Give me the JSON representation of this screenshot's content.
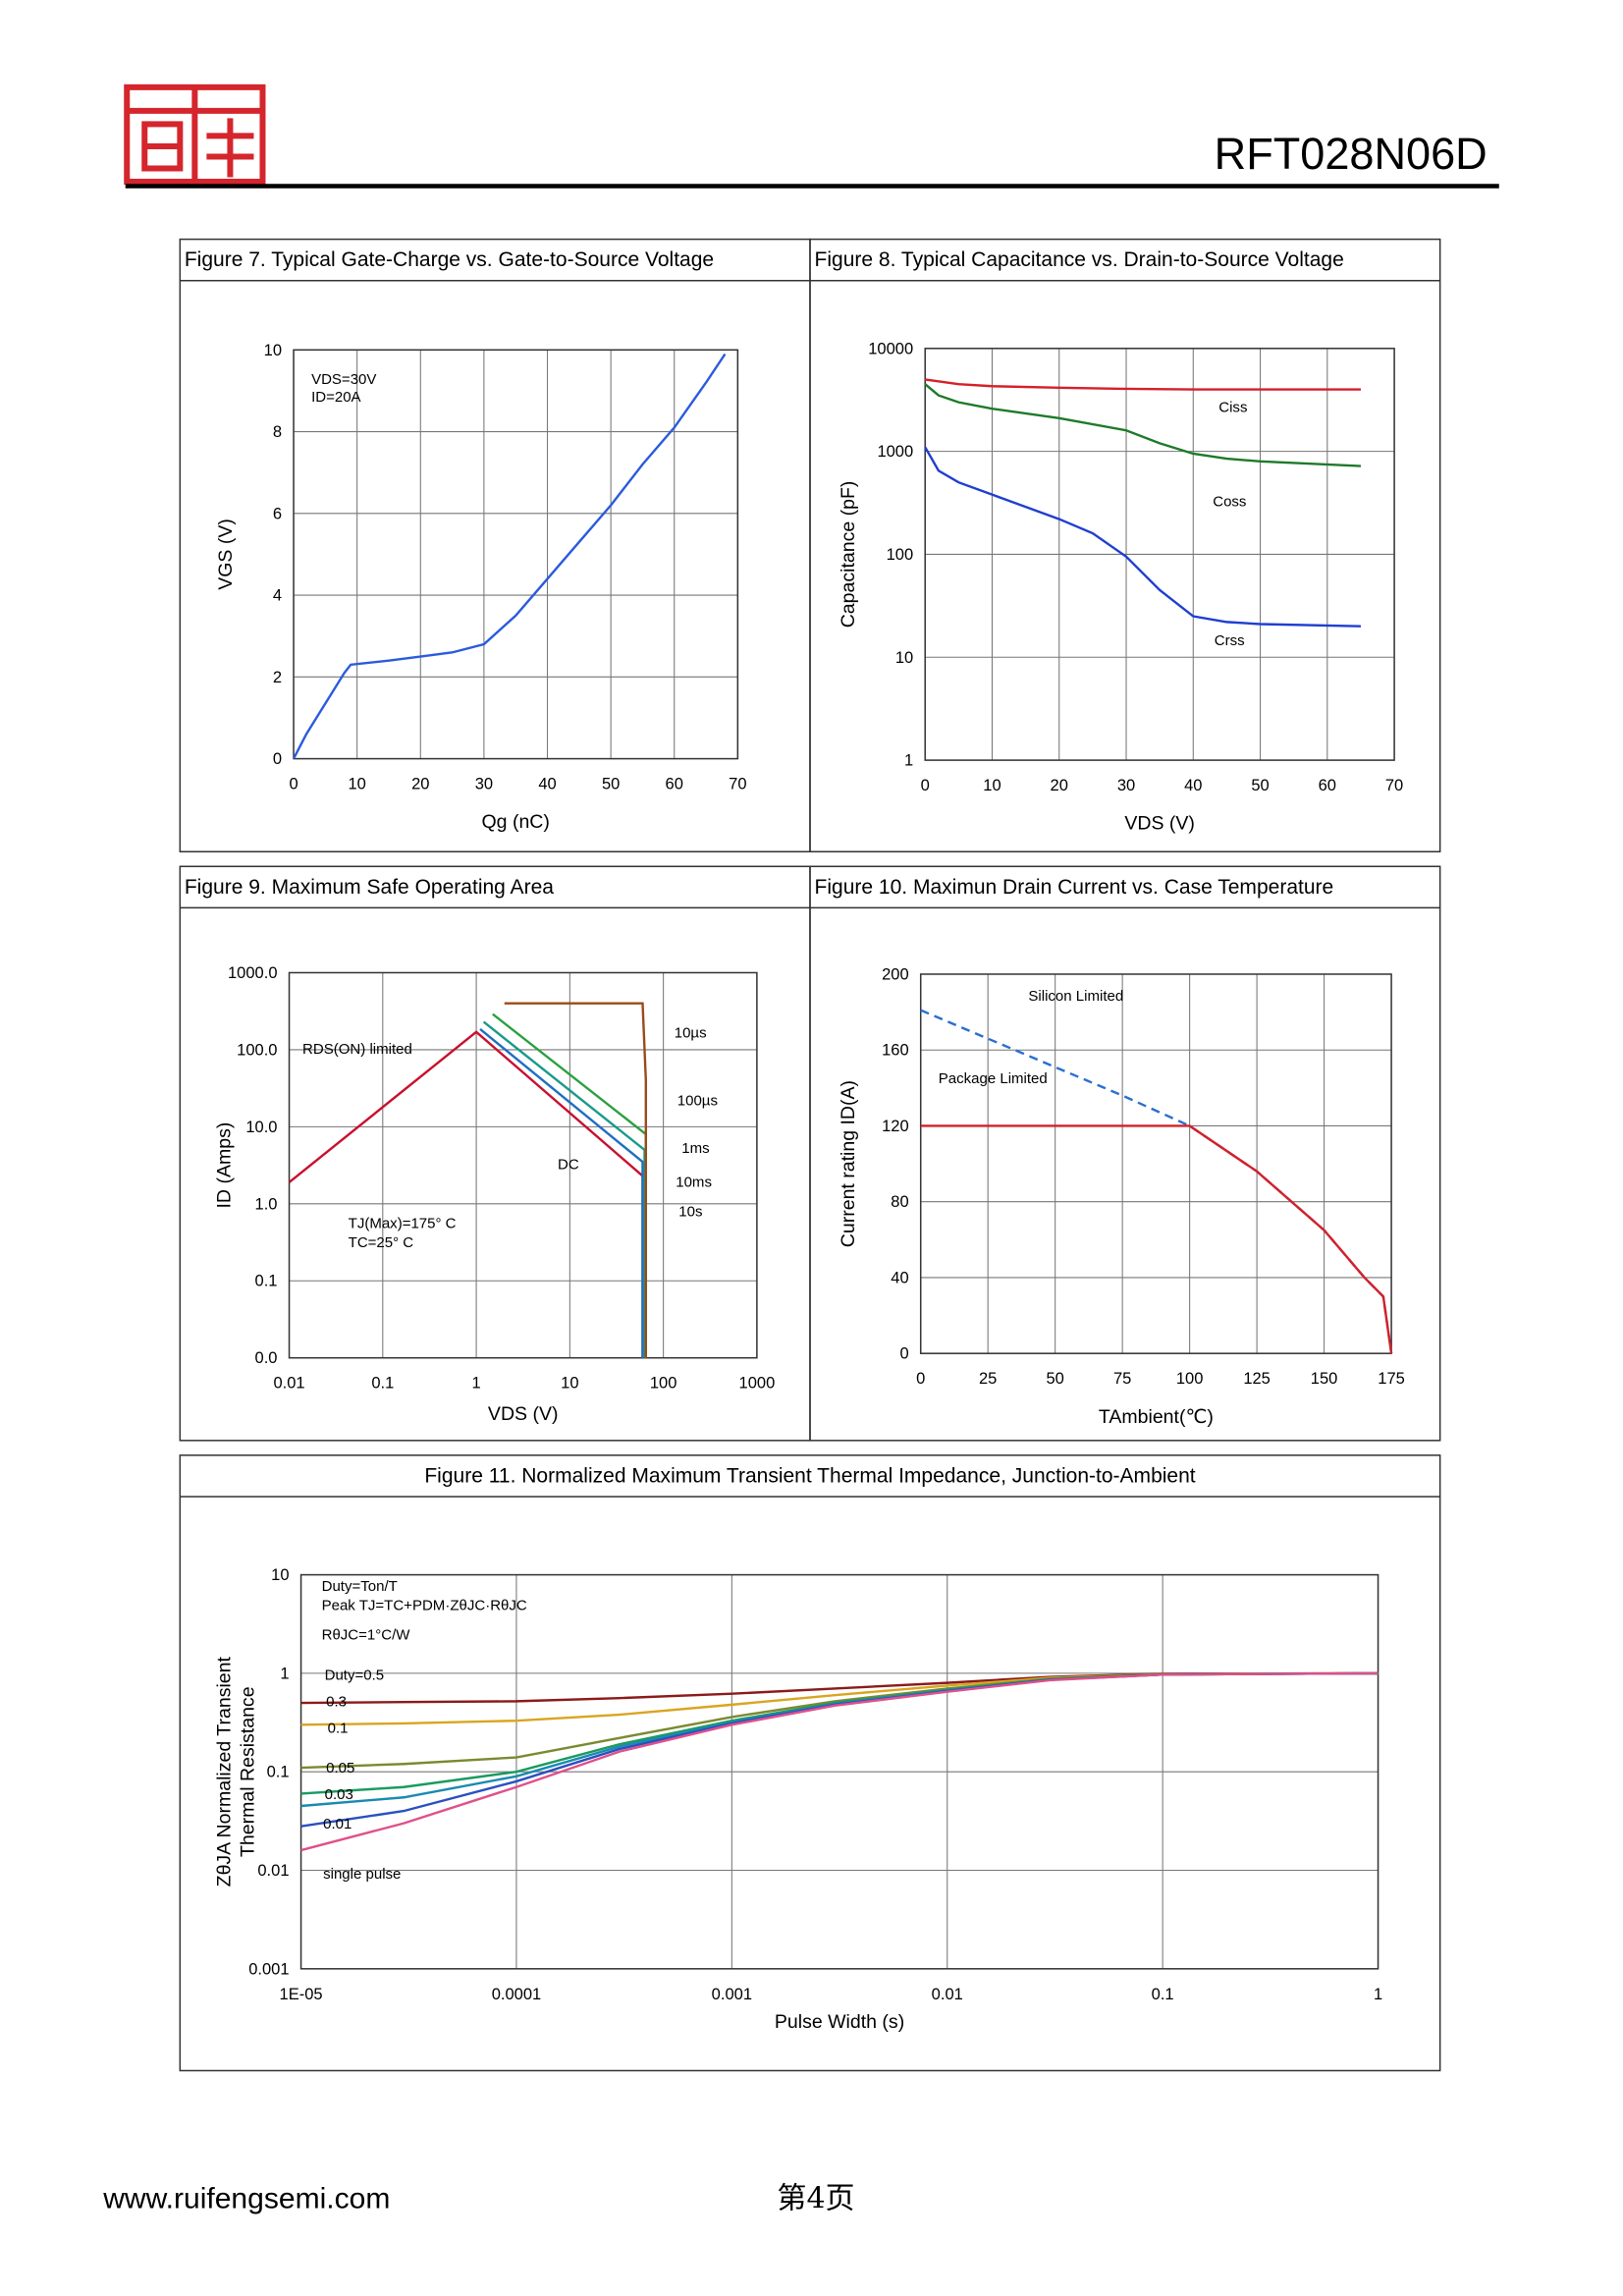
{
  "header": {
    "part_number": "RFT028N06D"
  },
  "footer": {
    "website": "www.ruifengsemi.com",
    "page": "第4页"
  },
  "chart_data": [
    {
      "type": "line",
      "title": "Figure 7. Typical Gate-Charge vs. Gate-to-Source Voltage",
      "x_label": "Qg (nC)",
      "y_label": [
        "VGS (V)"
      ],
      "xlim": [
        0,
        70
      ],
      "ylim": [
        0,
        10
      ],
      "xticks": [
        0,
        10,
        20,
        30,
        40,
        50,
        60,
        70
      ],
      "yticks": [
        0,
        2,
        4,
        6,
        8,
        10
      ],
      "log_x": false,
      "log_y": false,
      "grid": true,
      "annotations": [
        "VDS=30V",
        "ID=20A"
      ],
      "series": [
        {
          "color": "#2a5bdc",
          "x": [
            0,
            2,
            4,
            6,
            8,
            9,
            15,
            20,
            25,
            30,
            35,
            40,
            45,
            50,
            55,
            60,
            65,
            68
          ],
          "values": [
            0,
            0.6,
            1.1,
            1.6,
            2.1,
            2.3,
            2.4,
            2.5,
            2.6,
            2.8,
            3.5,
            4.4,
            5.3,
            6.2,
            7.2,
            8.1,
            9.2,
            9.9
          ]
        }
      ]
    },
    {
      "type": "line",
      "title": "Figure 8. Typical Capacitance vs. Drain-to-Source Voltage",
      "x_label": "VDS (V)",
      "y_label": [
        "Capacitance (pF)"
      ],
      "xlim": [
        0,
        70
      ],
      "ylim": [
        1,
        10000
      ],
      "xticks": [
        0,
        10,
        20,
        30,
        40,
        50,
        60,
        70
      ],
      "yticks": [
        1,
        10,
        100,
        1000,
        10000
      ],
      "log_x": false,
      "log_y": true,
      "grid": true,
      "annotations": [],
      "series": [
        {
          "name": "Ciss",
          "color": "#d4202a",
          "x": [
            0,
            5,
            10,
            20,
            30,
            40,
            50,
            65
          ],
          "values": [
            5000,
            4500,
            4300,
            4150,
            4050,
            4000,
            4000,
            4000
          ]
        },
        {
          "name": "Coss",
          "color": "#1e7a2a",
          "x": [
            0,
            2,
            5,
            10,
            20,
            30,
            35,
            40,
            45,
            50,
            65
          ],
          "values": [
            4500,
            3500,
            3000,
            2600,
            2100,
            1600,
            1200,
            950,
            850,
            800,
            720
          ]
        },
        {
          "name": "Crss",
          "color": "#1f3fd0",
          "x": [
            0,
            2,
            5,
            10,
            20,
            25,
            30,
            35,
            40,
            45,
            50,
            65
          ],
          "values": [
            1100,
            650,
            500,
            380,
            220,
            160,
            95,
            45,
            25,
            22,
            21,
            20
          ]
        }
      ]
    },
    {
      "type": "line",
      "title": "Figure 9. Maximum Safe Operating Area",
      "x_label": "VDS (V)",
      "y_label": [
        "ID (Amps)"
      ],
      "xlim": [
        0.01,
        1000
      ],
      "ylim": [
        0.01,
        1000
      ],
      "xticks": [
        0.01,
        0.1,
        1,
        10,
        100,
        1000
      ],
      "yticks": [
        {
          "value": 0.01,
          "label": "0.0"
        },
        {
          "value": 0.1,
          "label": "0.1"
        },
        {
          "value": 1,
          "label": "1.0"
        },
        {
          "value": 10,
          "label": "10.0"
        },
        {
          "value": 100,
          "label": "100.0"
        },
        {
          "value": 1000,
          "label": "1000.0"
        }
      ],
      "log_x": true,
      "log_y": true,
      "grid": true,
      "annotations": [
        "RDS(ON) limited",
        "100µs",
        "TJ(Max)=175° C",
        "TC=25° C"
      ],
      "series": [
        {
          "name": "DC",
          "color": "#c8102e",
          "x": [
            0.01,
            1,
            60,
            60
          ],
          "values": [
            1.9,
            170,
            2.3,
            0.01
          ]
        },
        {
          "name": "10s",
          "color": "#1f6fc0",
          "x": [
            1.1,
            60,
            60
          ],
          "values": [
            185,
            3.5,
            0.01
          ]
        },
        {
          "name": "10ms",
          "color": "#1a9a8a",
          "x": [
            1.2,
            63,
            63
          ],
          "values": [
            230,
            5,
            0.01
          ]
        },
        {
          "name": "1ms",
          "color": "#2aa040",
          "x": [
            1.5,
            65,
            65
          ],
          "values": [
            290,
            8,
            0.01
          ]
        },
        {
          "name": "10µs",
          "color": "#9a4a1a",
          "x": [
            2,
            60,
            65,
            65
          ],
          "values": [
            400,
            400,
            40,
            0.01
          ]
        }
      ]
    },
    {
      "type": "line",
      "title": "Figure 10. Maximun Drain Current vs. Case Temperature",
      "x_label": "TAmbient(℃)",
      "y_label": [
        "Current rating ID(A)"
      ],
      "xlim": [
        0,
        175
      ],
      "ylim": [
        0,
        200
      ],
      "xticks": [
        0,
        25,
        50,
        75,
        100,
        125,
        150,
        175
      ],
      "yticks": [
        0,
        40,
        80,
        120,
        160,
        200
      ],
      "log_x": false,
      "log_y": false,
      "grid": true,
      "annotations": [],
      "series": [
        {
          "name": "Silicon Limited",
          "color": "#2a6fd0",
          "dashed": true,
          "x": [
            0,
            25,
            50,
            75,
            100,
            125,
            150,
            165,
            172,
            175
          ],
          "values": [
            181,
            166,
            151,
            136,
            120,
            96,
            65,
            40,
            30,
            0
          ]
        },
        {
          "name": "Package Limited",
          "color": "#d4202a",
          "dashed": false,
          "x": [
            0,
            100,
            125,
            150,
            165,
            172,
            175
          ],
          "values": [
            120,
            120,
            96,
            65,
            40,
            30,
            0
          ]
        }
      ]
    },
    {
      "type": "line",
      "title": "Figure 11. Normalized Maximum Transient Thermal Impedance, Junction-to-Ambient",
      "x_label": "Pulse Width (s)",
      "y_label": [
        "ZθJA Normalized Transient",
        "Thermal Resistance"
      ],
      "xlim": [
        1e-05,
        1
      ],
      "ylim": [
        0.001,
        10
      ],
      "xticks": [
        {
          "value": 1e-05,
          "label": "1E-05"
        },
        0.0001,
        0.001,
        0.01,
        0.1,
        1
      ],
      "yticks": [
        0.001,
        0.01,
        0.1,
        1,
        10
      ],
      "log_x": true,
      "log_y": true,
      "grid": true,
      "annotations": [
        "Duty=Ton/T",
        "Peak TJ=TC+PDM·ZθJC·RθJC",
        "RθJC=1°C/W"
      ],
      "series": [
        {
          "name": "Duty=0.5",
          "color": "#8b1a1a",
          "x": [
            1e-05,
            3e-05,
            0.0001,
            0.0003,
            0.001,
            0.003,
            0.01,
            0.03,
            0.1,
            1
          ],
          "values": [
            0.5,
            0.51,
            0.52,
            0.56,
            0.62,
            0.7,
            0.8,
            0.92,
            0.99,
            1
          ]
        },
        {
          "name": "0.3",
          "color": "#d9a520",
          "x": [
            1e-05,
            3e-05,
            0.0001,
            0.0003,
            0.001,
            0.003,
            0.01,
            0.03,
            0.1,
            1
          ],
          "values": [
            0.3,
            0.31,
            0.33,
            0.38,
            0.48,
            0.6,
            0.75,
            0.9,
            0.98,
            1
          ]
        },
        {
          "name": "0.1",
          "color": "#7a8a30",
          "x": [
            1e-05,
            3e-05,
            0.0001,
            0.0003,
            0.001,
            0.003,
            0.01,
            0.03,
            0.1,
            1
          ],
          "values": [
            0.11,
            0.12,
            0.14,
            0.22,
            0.36,
            0.52,
            0.7,
            0.88,
            0.98,
            1
          ]
        },
        {
          "name": "0.05",
          "color": "#1a9a60",
          "x": [
            1e-05,
            3e-05,
            0.0001,
            0.0003,
            0.001,
            0.003,
            0.01,
            0.03,
            0.1,
            1
          ],
          "values": [
            0.06,
            0.07,
            0.1,
            0.19,
            0.33,
            0.5,
            0.68,
            0.87,
            0.97,
            1
          ]
        },
        {
          "name": "0.03",
          "color": "#1a8ab0",
          "x": [
            1e-05,
            3e-05,
            0.0001,
            0.0003,
            0.001,
            0.003,
            0.01,
            0.03,
            0.1,
            1
          ],
          "values": [
            0.045,
            0.055,
            0.09,
            0.18,
            0.32,
            0.49,
            0.67,
            0.86,
            0.97,
            1
          ]
        },
        {
          "name": "0.01",
          "color": "#2a50c0",
          "x": [
            1e-05,
            3e-05,
            0.0001,
            0.0003,
            0.001,
            0.003,
            0.01,
            0.03,
            0.1,
            1
          ],
          "values": [
            0.028,
            0.04,
            0.08,
            0.17,
            0.31,
            0.48,
            0.66,
            0.86,
            0.97,
            1
          ]
        },
        {
          "name": "single pulse",
          "color": "#e0508a",
          "x": [
            1e-05,
            3e-05,
            0.0001,
            0.0003,
            0.001,
            0.003,
            0.01,
            0.03,
            0.1,
            1
          ],
          "values": [
            0.016,
            0.03,
            0.07,
            0.16,
            0.3,
            0.47,
            0.65,
            0.85,
            0.97,
            1
          ]
        }
      ]
    }
  ]
}
